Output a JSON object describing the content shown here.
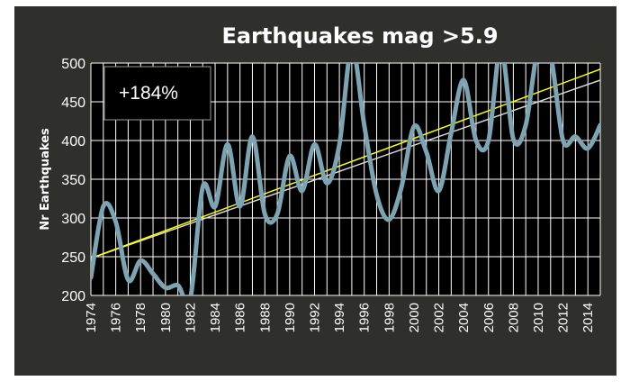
{
  "chart_data": {
    "type": "line",
    "title": "Earthquakes mag >5.9",
    "xlabel": "",
    "ylabel": "Nr Earthquakes",
    "annotation": "+184%",
    "xlim": [
      1974,
      2015
    ],
    "ylim": [
      200,
      500
    ],
    "yticks": [
      200,
      250,
      300,
      350,
      400,
      450,
      500
    ],
    "xticks": [
      "1974",
      "1976",
      "1978",
      "1980",
      "1982",
      "1984",
      "1986",
      "1988",
      "1990",
      "1992",
      "1994",
      "1996",
      "1998",
      "2000",
      "2002",
      "2004",
      "2006",
      "2008",
      "2010",
      "2012",
      "2014"
    ],
    "grid": true,
    "colors": {
      "background": "#2f2f2c",
      "plot_area": "#000000",
      "grid": "#ffffff",
      "data_line": "#7ea3b2",
      "trend_linear": "#ffff00",
      "trend_poly": "#d9d9d9"
    },
    "series": [
      {
        "x": [
          1974,
          1975,
          1976,
          1977,
          1978,
          1979,
          1980,
          1981,
          1982,
          1983,
          1984,
          1985,
          1986,
          1987,
          1988,
          1989,
          1990,
          1991,
          1992,
          1993,
          1994,
          1995,
          1996,
          1997,
          1998,
          1999,
          2000,
          2001,
          2002,
          2003,
          2004,
          2005,
          2006,
          2007,
          2008,
          2009,
          2010,
          2011,
          2012,
          2013,
          2014,
          2015
        ],
        "values": [
          223,
          315,
          295,
          220,
          245,
          228,
          210,
          213,
          196,
          340,
          315,
          395,
          315,
          405,
          305,
          305,
          380,
          335,
          395,
          345,
          395,
          520,
          420,
          330,
          298,
          340,
          418,
          385,
          335,
          410,
          478,
          400,
          400,
          520,
          402,
          420,
          520,
          510,
          400,
          405,
          390,
          420
        ]
      },
      {
        "x": [
          1974,
          2015
        ],
        "values": [
          248,
          492
        ]
      },
      {
        "x": [
          1974,
          2015
        ],
        "values": [
          248,
          478
        ]
      }
    ]
  }
}
